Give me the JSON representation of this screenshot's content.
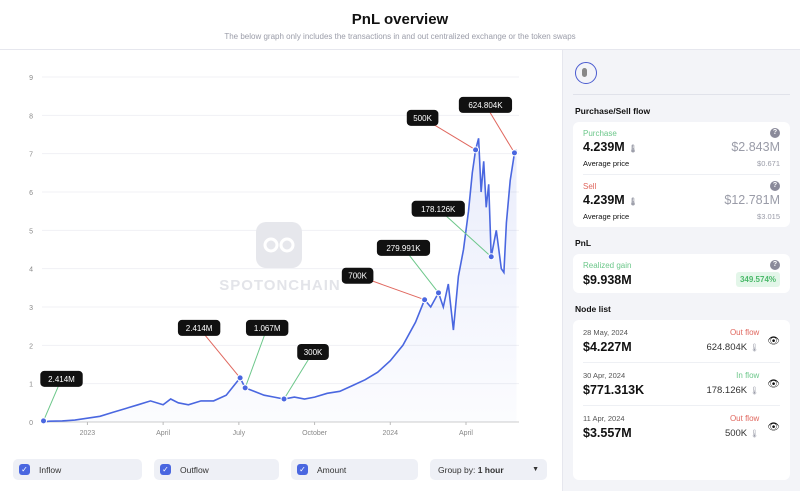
{
  "header": {
    "title": "PnL overview",
    "subtitle": "The below graph only includes the transactions in and out centralized exchange or the token swaps"
  },
  "watermark": "SPOTONCHAIN",
  "controls": {
    "inflow": "Inflow",
    "outflow": "Outflow",
    "amount": "Amount",
    "group_label": "Group by:",
    "group_value": "1 hour"
  },
  "panel": {
    "purchase_sell_title": "Purchase/Sell flow",
    "purchase": {
      "label": "Purchase",
      "amount": "4.239M",
      "value": "$2.843M",
      "avg_label": "Average price",
      "avg": "$0.671"
    },
    "sell": {
      "label": "Sell",
      "amount": "4.239M",
      "value": "$12.781M",
      "avg_label": "Average price",
      "avg": "$3.015"
    },
    "pnl_title": "PnL",
    "realized": {
      "label": "Realized gain",
      "value": "$9.938M",
      "pct": "349.574%"
    },
    "node_title": "Node list",
    "nodes": [
      {
        "date": "28 May, 2024",
        "value": "$4.227M",
        "flow": "Out flow",
        "amount": "624.804K"
      },
      {
        "date": "30 Apr, 2024",
        "value": "$771.313K",
        "flow": "In flow",
        "amount": "178.126K"
      },
      {
        "date": "11 Apr, 2024",
        "value": "$3.557M",
        "flow": "Out flow",
        "amount": "500K"
      }
    ]
  },
  "colors": {
    "line": "#4a67e0",
    "in": "#6cc78a",
    "out": "#e0675e"
  },
  "chart_data": {
    "type": "line",
    "ylim": [
      0,
      9
    ],
    "yticks": [
      0,
      1,
      2,
      3,
      4,
      5,
      6,
      7,
      8,
      9
    ],
    "xlim": [
      -1.8,
      17.1
    ],
    "xticks": [
      {
        "x": 0,
        "label": "2023"
      },
      {
        "x": 3,
        "label": "April"
      },
      {
        "x": 6,
        "label": "July"
      },
      {
        "x": 9,
        "label": "October"
      },
      {
        "x": 12,
        "label": "2024"
      },
      {
        "x": 15,
        "label": "April"
      }
    ],
    "series": [
      {
        "name": "Amount",
        "points": [
          [
            -1.8,
            0
          ],
          [
            -1.5,
            0.02
          ],
          [
            -1,
            0.03
          ],
          [
            -0.5,
            0.05
          ],
          [
            0,
            0.1
          ],
          [
            0.5,
            0.15
          ],
          [
            1,
            0.25
          ],
          [
            1.5,
            0.35
          ],
          [
            2,
            0.45
          ],
          [
            2.5,
            0.55
          ],
          [
            3,
            0.45
          ],
          [
            3.3,
            0.6
          ],
          [
            3.6,
            0.5
          ],
          [
            4,
            0.45
          ],
          [
            4.5,
            0.55
          ],
          [
            5,
            0.55
          ],
          [
            5.5,
            0.7
          ],
          [
            6.05,
            1.15
          ],
          [
            6.25,
            0.89
          ],
          [
            6.6,
            0.8
          ],
          [
            7,
            0.7
          ],
          [
            7.4,
            0.65
          ],
          [
            7.79,
            0.6
          ],
          [
            8.2,
            0.65
          ],
          [
            8.6,
            0.6
          ],
          [
            9,
            0.65
          ],
          [
            9.5,
            0.75
          ],
          [
            10,
            0.8
          ],
          [
            10.5,
            0.95
          ],
          [
            11,
            1.1
          ],
          [
            11.5,
            1.3
          ],
          [
            12,
            1.6
          ],
          [
            12.5,
            2.0
          ],
          [
            13,
            2.6
          ],
          [
            13.36,
            3.19
          ],
          [
            13.6,
            3.0
          ],
          [
            13.91,
            3.37
          ],
          [
            14.1,
            3.0
          ],
          [
            14.3,
            3.6
          ],
          [
            14.5,
            2.4
          ],
          [
            14.7,
            3.8
          ],
          [
            14.9,
            4.5
          ],
          [
            15.1,
            5.5
          ],
          [
            15.25,
            6.5
          ],
          [
            15.38,
            7.1
          ],
          [
            15.5,
            7.4
          ],
          [
            15.6,
            6.0
          ],
          [
            15.7,
            6.8
          ],
          [
            15.8,
            5.6
          ],
          [
            15.9,
            6.2
          ],
          [
            16.0,
            4.31
          ],
          [
            16.2,
            5.0
          ],
          [
            16.4,
            4.0
          ],
          [
            16.5,
            3.9
          ],
          [
            16.6,
            5.2
          ],
          [
            16.75,
            6.3
          ],
          [
            16.92,
            7.02
          ],
          [
            17.0,
            7.1
          ]
        ]
      }
    ],
    "annotations": [
      {
        "x": -1.74,
        "y": 0.03,
        "label": "2.414M",
        "flow": "in"
      },
      {
        "x": 6.05,
        "y": 1.15,
        "label": "2.414M",
        "flow": "out"
      },
      {
        "x": 6.25,
        "y": 0.89,
        "label": "1.067M",
        "flow": "in"
      },
      {
        "x": 7.79,
        "y": 0.6,
        "label": "300K",
        "flow": "in"
      },
      {
        "x": 13.36,
        "y": 3.19,
        "label": "700K",
        "flow": "out"
      },
      {
        "x": 13.91,
        "y": 3.37,
        "label": "279.991K",
        "flow": "in"
      },
      {
        "x": 16.0,
        "y": 4.31,
        "label": "178.126K",
        "flow": "in"
      },
      {
        "x": 15.38,
        "y": 7.1,
        "label": "500K",
        "flow": "out"
      },
      {
        "x": 16.92,
        "y": 7.02,
        "label": "624.804K",
        "flow": "out"
      }
    ]
  }
}
